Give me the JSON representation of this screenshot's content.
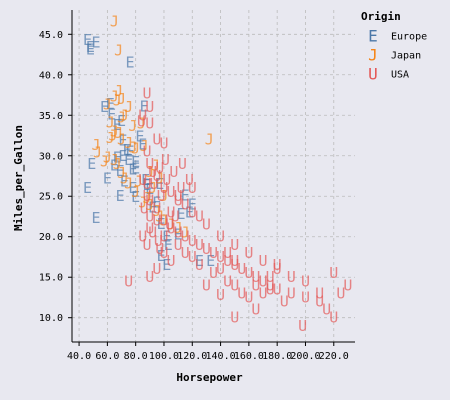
{
  "chart_data": {
    "type": "scatter",
    "xlabel": "Horsepower",
    "ylabel": "Miles_per_Gallon",
    "x_ticks": [
      "40.0",
      "60.0",
      "80.0",
      "100.0",
      "120.0",
      "140.0",
      "160.0",
      "180.0",
      "200.0",
      "220.0"
    ],
    "y_ticks": [
      "10.0",
      "15.0",
      "20.0",
      "25.0",
      "30.0",
      "35.0",
      "40.0",
      "45.0"
    ],
    "xlim": [
      35,
      235
    ],
    "ylim": [
      7,
      48
    ],
    "grid": true,
    "legend": {
      "title": "Origin",
      "placement": "top-right",
      "entries": [
        {
          "label": "Europe",
          "symbol": "E",
          "color": "#4c78a8"
        },
        {
          "label": "Japan",
          "symbol": "J",
          "color": "#f58518"
        },
        {
          "label": "USA",
          "symbol": "U",
          "color": "#e45756"
        }
      ]
    },
    "series": [
      {
        "name": "Europe",
        "symbol": "E",
        "color": "#4c78a8",
        "points": [
          [
            46,
            44.3
          ],
          [
            48,
            43.4
          ],
          [
            48,
            43.1
          ],
          [
            52,
            44.0
          ],
          [
            49,
            29.0
          ],
          [
            46,
            26.0
          ],
          [
            52,
            22.3
          ],
          [
            67,
            29.8
          ],
          [
            71,
            31.9
          ],
          [
            76,
            41.5
          ],
          [
            62,
            36.4
          ],
          [
            67,
            33.8
          ],
          [
            63,
            35.1
          ],
          [
            70,
            34.3
          ],
          [
            75,
            29.5
          ],
          [
            78,
            26.0
          ],
          [
            78,
            28.3
          ],
          [
            80,
            28.4
          ],
          [
            85,
            31.4
          ],
          [
            88,
            26.4
          ],
          [
            90,
            25.9
          ],
          [
            95,
            24.2
          ],
          [
            97,
            26.5
          ],
          [
            98,
            21.6
          ],
          [
            102,
            20.0
          ],
          [
            103,
            19.0
          ],
          [
            110,
            20.3
          ],
          [
            115,
            25.1
          ],
          [
            118,
            23.0
          ],
          [
            120,
            24.0
          ],
          [
            125,
            17.0
          ],
          [
            133,
            17.0
          ],
          [
            102,
            16.5
          ],
          [
            80,
            24.9
          ],
          [
            86,
            36.1
          ],
          [
            65,
            28.8
          ],
          [
            74,
            30.7
          ],
          [
            71,
            30.0
          ],
          [
            87,
            27.0
          ],
          [
            60,
            27.2
          ],
          [
            72,
            26.8
          ],
          [
            69,
            25.0
          ],
          [
            83,
            32.4
          ],
          [
            92,
            23.6
          ],
          [
            58,
            36.0
          ],
          [
            76,
            30.5
          ],
          [
            80,
            29.2
          ],
          [
            98,
            17.6
          ],
          [
            112,
            22.8
          ],
          [
            69,
            28.1
          ]
        ]
      },
      {
        "name": "Japan",
        "symbol": "J",
        "color": "#f58518",
        "points": [
          [
            65,
            46.6
          ],
          [
            68,
            43.0
          ],
          [
            70,
            37.0
          ],
          [
            67,
            36.8
          ],
          [
            65,
            37.3
          ],
          [
            60,
            36.3
          ],
          [
            62,
            34.1
          ],
          [
            65,
            33.0
          ],
          [
            68,
            32.8
          ],
          [
            70,
            32.0
          ],
          [
            75,
            31.6
          ],
          [
            52,
            31.3
          ],
          [
            53,
            30.4
          ],
          [
            60,
            29.8
          ],
          [
            65,
            29.5
          ],
          [
            67,
            29.0
          ],
          [
            70,
            27.9
          ],
          [
            72,
            27.2
          ],
          [
            75,
            26.6
          ],
          [
            80,
            25.5
          ],
          [
            85,
            24.2
          ],
          [
            88,
            24.8
          ],
          [
            90,
            23.9
          ],
          [
            95,
            23.2
          ],
          [
            97,
            22.5
          ],
          [
            100,
            22.0
          ],
          [
            105,
            21.5
          ],
          [
            110,
            21.1
          ],
          [
            115,
            20.5
          ],
          [
            132,
            32.0
          ],
          [
            68,
            38.0
          ],
          [
            78,
            33.7
          ],
          [
            84,
            34.0
          ],
          [
            62,
            32.2
          ],
          [
            70,
            34.7
          ],
          [
            75,
            36.0
          ],
          [
            80,
            30.9
          ],
          [
            90,
            28.0
          ],
          [
            92,
            26.0
          ],
          [
            97,
            27.2
          ],
          [
            58,
            29.3
          ],
          [
            72,
            35.0
          ],
          [
            86,
            31.2
          ],
          [
            94,
            28.8
          ],
          [
            100,
            25.0
          ],
          [
            64,
            32.5
          ],
          [
            78,
            31.0
          ],
          [
            82,
            26.8
          ]
        ]
      },
      {
        "name": "USA",
        "symbol": "U",
        "color": "#e45756",
        "points": [
          [
            88,
            37.7
          ],
          [
            90,
            36.0
          ],
          [
            85,
            35.0
          ],
          [
            90,
            34.0
          ],
          [
            84,
            34.2
          ],
          [
            95,
            32.0
          ],
          [
            100,
            31.5
          ],
          [
            88,
            30.5
          ],
          [
            90,
            29.0
          ],
          [
            92,
            28.0
          ],
          [
            95,
            27.5
          ],
          [
            100,
            26.0
          ],
          [
            105,
            25.5
          ],
          [
            110,
            25.0
          ],
          [
            115,
            24.0
          ],
          [
            120,
            23.0
          ],
          [
            85,
            27.0
          ],
          [
            88,
            26.5
          ],
          [
            90,
            24.5
          ],
          [
            95,
            23.5
          ],
          [
            100,
            22.0
          ],
          [
            105,
            21.0
          ],
          [
            110,
            20.5
          ],
          [
            115,
            20.0
          ],
          [
            120,
            19.5
          ],
          [
            125,
            19.0
          ],
          [
            130,
            18.5
          ],
          [
            135,
            18.0
          ],
          [
            140,
            17.5
          ],
          [
            145,
            17.0
          ],
          [
            150,
            16.5
          ],
          [
            155,
            16.0
          ],
          [
            160,
            15.5
          ],
          [
            165,
            15.0
          ],
          [
            170,
            14.5
          ],
          [
            175,
            14.0
          ],
          [
            180,
            13.5
          ],
          [
            190,
            13.0
          ],
          [
            200,
            12.5
          ],
          [
            210,
            12.0
          ],
          [
            215,
            11.0
          ],
          [
            220,
            10.0
          ],
          [
            225,
            13.0
          ],
          [
            230,
            14.0
          ],
          [
            198,
            9.0
          ],
          [
            140,
            12.8
          ],
          [
            145,
            14.5
          ],
          [
            150,
            14.0
          ],
          [
            155,
            13.0
          ],
          [
            160,
            12.5
          ],
          [
            165,
            11.0
          ],
          [
            170,
            13.0
          ],
          [
            175,
            13.5
          ],
          [
            180,
            16.0
          ],
          [
            185,
            12.0
          ],
          [
            190,
            15.0
          ],
          [
            150,
            10.0
          ],
          [
            130,
            14.0
          ],
          [
            135,
            15.5
          ],
          [
            140,
            16.0
          ],
          [
            145,
            18.0
          ],
          [
            150,
            17.0
          ],
          [
            110,
            19.0
          ],
          [
            115,
            18.0
          ],
          [
            120,
            17.5
          ],
          [
            125,
            16.5
          ],
          [
            100,
            18.0
          ],
          [
            105,
            17.0
          ],
          [
            95,
            16.0
          ],
          [
            90,
            15.0
          ],
          [
            75,
            14.5
          ],
          [
            97,
            18.5
          ],
          [
            100,
            20.0
          ],
          [
            105,
            23.0
          ],
          [
            110,
            24.5
          ],
          [
            120,
            26.0
          ],
          [
            85,
            20.0
          ],
          [
            90,
            21.0
          ],
          [
            95,
            22.0
          ],
          [
            88,
            19.0
          ],
          [
            92,
            20.5
          ],
          [
            98,
            25.0
          ],
          [
            102,
            27.0
          ],
          [
            107,
            28.0
          ],
          [
            113,
            29.0
          ],
          [
            90,
            22.5
          ],
          [
            86,
            23.5
          ],
          [
            96,
            19.5
          ],
          [
            104,
            21.5
          ],
          [
            108,
            22.5
          ],
          [
            112,
            26.0
          ],
          [
            118,
            27.0
          ],
          [
            88,
            25.0
          ],
          [
            93,
            26.5
          ],
          [
            97,
            28.5
          ],
          [
            101,
            29.5
          ],
          [
            140,
            20.0
          ],
          [
            150,
            19.0
          ],
          [
            160,
            18.0
          ],
          [
            170,
            17.0
          ],
          [
            180,
            16.5
          ],
          [
            200,
            14.5
          ],
          [
            210,
            13.0
          ],
          [
            220,
            15.5
          ],
          [
            165,
            14.0
          ],
          [
            175,
            15.0
          ],
          [
            125,
            22.5
          ],
          [
            130,
            21.5
          ]
        ]
      }
    ]
  }
}
